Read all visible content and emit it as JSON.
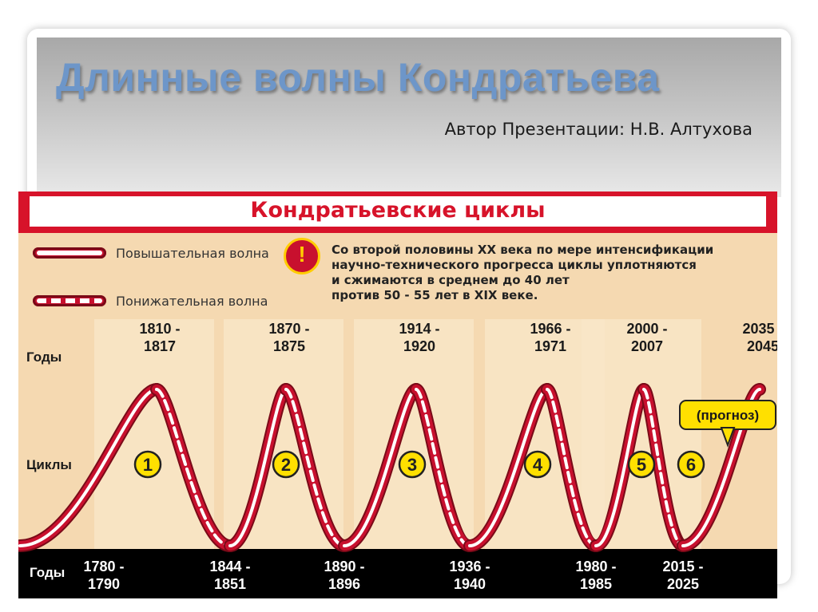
{
  "slide": {
    "title": "Длинные волны Кондратьева",
    "author": "Автор Презентации: Н.В. Алтухова"
  },
  "infographic": {
    "title": "Кондратьевские циклы",
    "legend": {
      "rising_label": "Повышательная волна",
      "falling_label": "Понижательная волна"
    },
    "warning_icon": "!",
    "note": "Со второй половины XX века  по мере интенсификации\nнаучно-технического прогресса  циклы уплотняются\nи сжимаются в среднем до 40 лет\nпротив 50 - 55 лет в XIX веке.",
    "top_row_label": "Годы",
    "cycles_row_label": "Циклы",
    "bottom_row_label": "Годы",
    "forecast_label": "(прогноз)"
  },
  "chart_data": {
    "type": "line",
    "title": "Кондратьевские циклы",
    "peaks": [
      "1810 -\n1817",
      "1870 -\n1875",
      "1914 -\n1920",
      "1966 -\n1971",
      "2000 -\n2007",
      "2035 -\n2045"
    ],
    "troughs": [
      "1780 -\n1790",
      "1844 -\n1851",
      "1890 -\n1896",
      "1936 -\n1940",
      "1980 -\n1985",
      "2015 -\n2025"
    ],
    "cycles": [
      "1",
      "2",
      "3",
      "4",
      "5",
      "6"
    ],
    "series": [
      {
        "name": "Повышательная волна",
        "style": "solid",
        "color": "#c8102e"
      },
      {
        "name": "Понижательная волна",
        "style": "dashed",
        "color": "#c8102e"
      }
    ],
    "forecast_note": "(прогноз)",
    "colors": {
      "background": "#f5d9b1",
      "band": "#f9e6c8",
      "line": "#c8102e",
      "cycle_badge": "#ffe000",
      "title_bar": "#d7132a"
    }
  }
}
